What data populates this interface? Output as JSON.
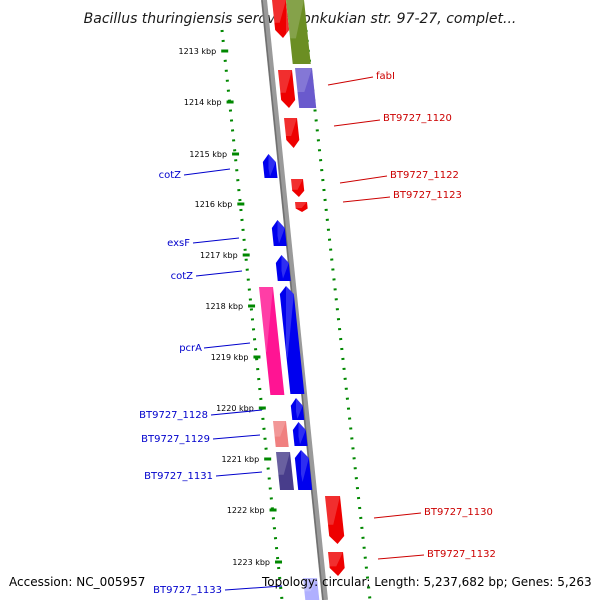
{
  "title": "Bacillus thuringiensis serovar konkukian str. 97-27, complet...",
  "footer": {
    "accession": "Accession: NC_005957",
    "topology": "Topology: circular; Length: 5,237,682 bp; Genes: 5,263"
  },
  "colors": {
    "backbone": "#808080",
    "tick": "#008800",
    "left_label": "#0000cc",
    "right_label": "#cc0000",
    "gene_red": "#ee0000",
    "gene_blue": "#0000ee",
    "gene_pink": "#ff1493",
    "gene_olive": "#6b8e23",
    "gene_slateblue": "#6a5acd",
    "gene_lightpink": "#f08080",
    "gene_darkslate": "#483d8b",
    "gene_lavender": "#b0b0ff"
  },
  "kbp_ticks": [
    "1213 kbp",
    "1214 kbp",
    "1215 kbp",
    "1216 kbp",
    "1217 kbp",
    "1218 kbp",
    "1219 kbp",
    "1220 kbp",
    "1221 kbp",
    "1222 kbp",
    "1223 kbp"
  ],
  "left_labels": [
    "cotZ",
    "exsF",
    "cotZ",
    "pcrA",
    "BT9727_1128",
    "BT9727_1129",
    "BT9727_1131",
    "BT9727_1133"
  ],
  "right_labels": [
    "fabI",
    "BT9727_1120",
    "BT9727_1122",
    "BT9727_1123",
    "BT9727_1130",
    "BT9727_1132"
  ]
}
